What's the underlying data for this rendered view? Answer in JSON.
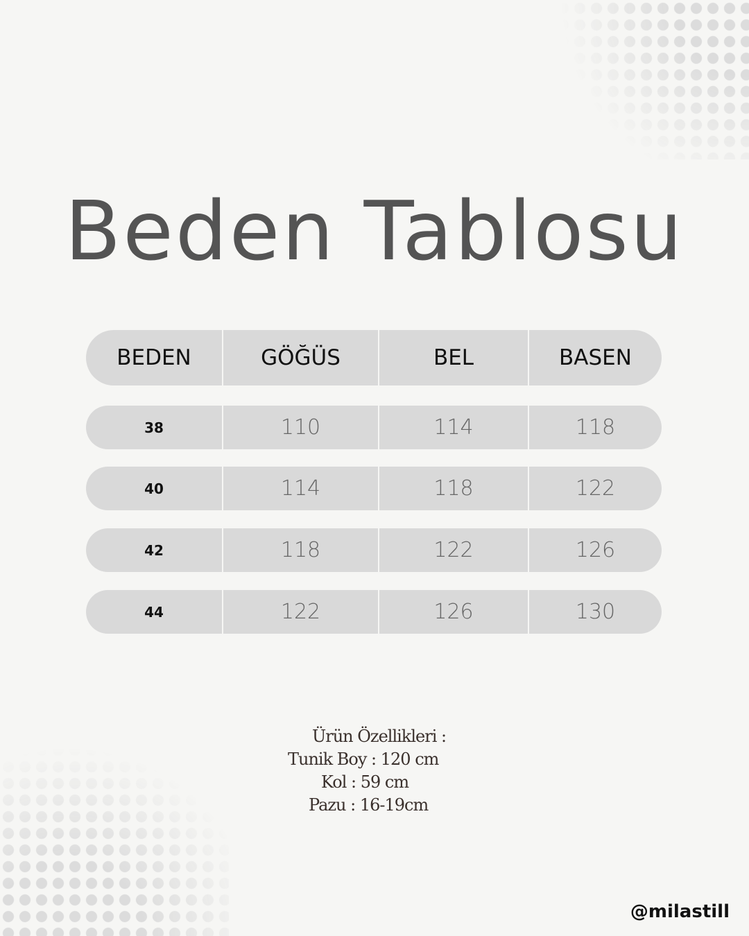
{
  "title": "Beden Tablosu",
  "table": {
    "headers": [
      "BEDEN",
      "GÖĞÜS",
      "BEL",
      "BASEN"
    ],
    "rows": [
      [
        "38",
        "110",
        "114",
        "118"
      ],
      [
        "40",
        "114",
        "118",
        "122"
      ],
      [
        "42",
        "118",
        "122",
        "126"
      ],
      [
        "44",
        "122",
        "126",
        "130"
      ]
    ]
  },
  "specs": {
    "heading": "Ürün Özellikleri :",
    "lines": [
      "Tunik Boy : 120  cm",
      "Kol : 59 cm",
      "Pazu : 16-19cm"
    ]
  },
  "handle": "@milastill",
  "colors": {
    "background": "#f6f6f4",
    "cell": "#d9d9d9",
    "title": "#545454"
  }
}
